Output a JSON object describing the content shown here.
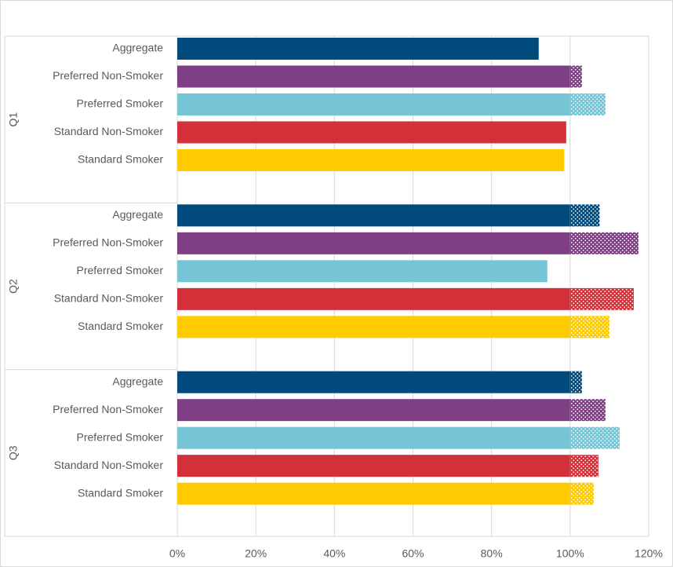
{
  "chart_data": {
    "type": "grouped-hbar",
    "groups": [
      "Q1",
      "Q2",
      "Q3"
    ],
    "series": [
      {
        "name": "Aggregate",
        "color": "#004b7c",
        "values": [
          92,
          107.5,
          103
        ]
      },
      {
        "name": "Preferred Non-Smoker",
        "color": "#7f3f85",
        "values": [
          103,
          117.4,
          109
        ]
      },
      {
        "name": "Preferred Smoker",
        "color": "#76c5d6",
        "values": [
          109,
          94.2,
          112.6
        ]
      },
      {
        "name": "Standard Non-Smoker",
        "color": "#d3313a",
        "values": [
          99,
          116.2,
          107.2
        ]
      },
      {
        "name": "Standard Smoker",
        "color": "#fdcb00",
        "values": [
          98.5,
          110,
          106
        ]
      }
    ],
    "xlim": [
      0,
      120
    ],
    "xticks": [
      {
        "value": 0,
        "label": "0%"
      },
      {
        "value": 20,
        "label": "20%"
      },
      {
        "value": 40,
        "label": "40%"
      },
      {
        "value": 60,
        "label": "60%"
      },
      {
        "value": 80,
        "label": "80%"
      },
      {
        "value": 100,
        "label": "100%"
      },
      {
        "value": 120,
        "label": "120%"
      }
    ],
    "grid": true,
    "dotted_above": 100
  }
}
